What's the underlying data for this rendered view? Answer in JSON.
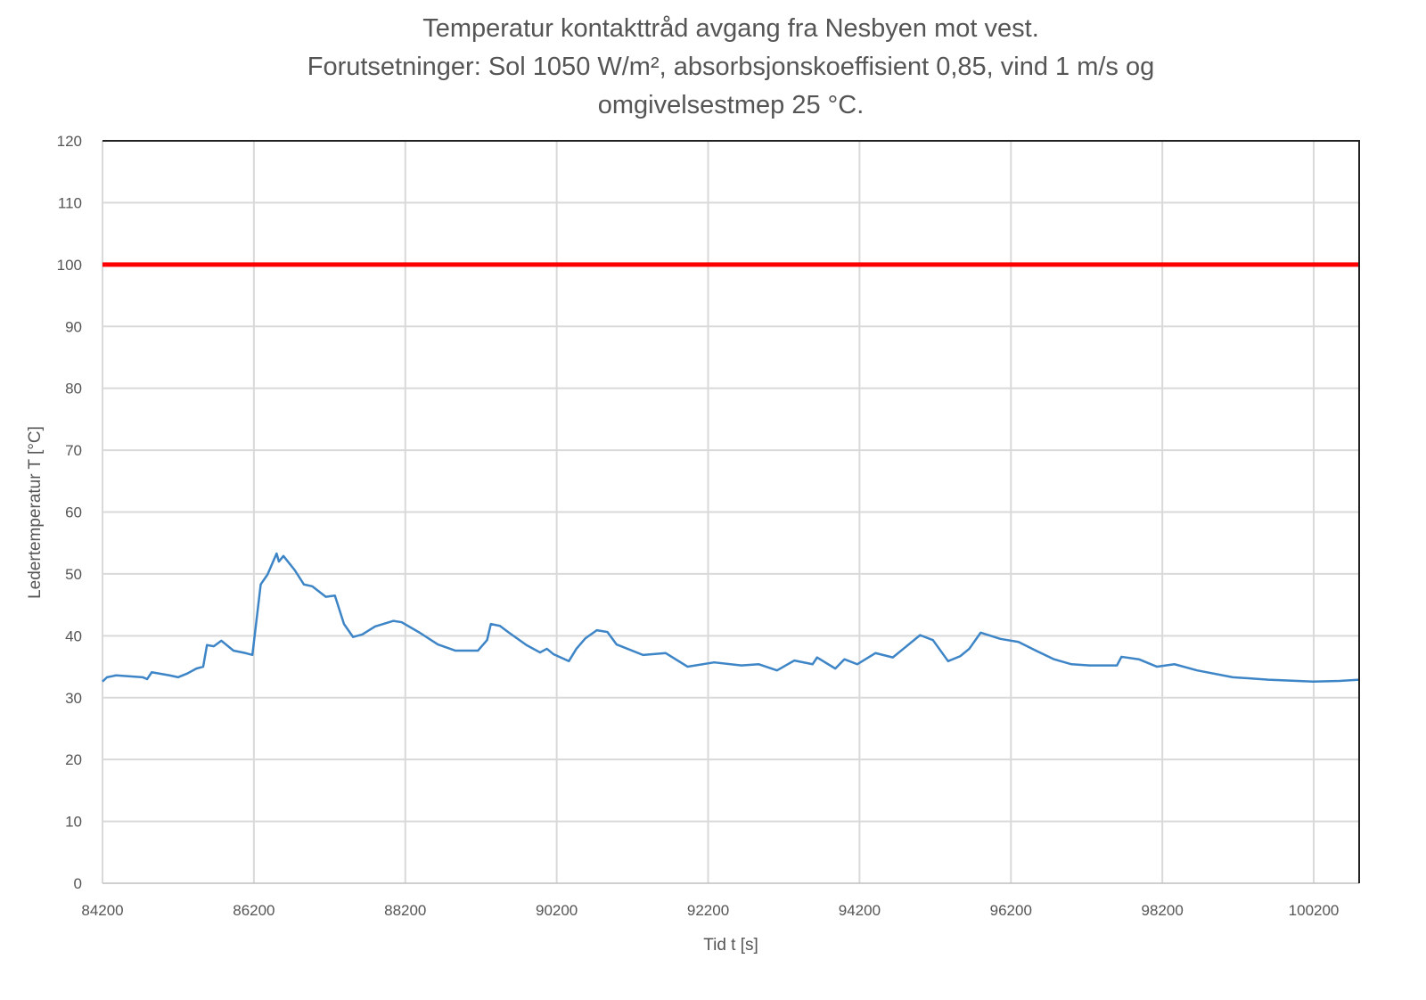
{
  "chart_data": {
    "type": "line",
    "title_lines": [
      "Temperatur kontakttråd avgang fra Nesbyen mot vest.",
      "Forutsetninger: Sol 1050 W/m², absorbsjonskoeffisient  0,85, vind 1 m/s og",
      "omgivelsestmep 25 °C."
    ],
    "xlabel": "Tid t [s]",
    "ylabel": "Ledertemperatur  T [°C]",
    "xlim": [
      84200,
      100800
    ],
    "ylim": [
      0,
      120
    ],
    "xticks": [
      "84200",
      "86200",
      "88200",
      "90200",
      "92200",
      "94200",
      "96200",
      "98200",
      "100200"
    ],
    "yticks": [
      "0",
      "10",
      "20",
      "30",
      "40",
      "50",
      "60",
      "70",
      "80",
      "90",
      "100",
      "110",
      "120"
    ],
    "grid": true,
    "colors": {
      "series": "#3d85c6",
      "limit": "#ff0000",
      "grid": "#d9d9d9"
    },
    "reference_line": {
      "y": 100
    },
    "series": [
      {
        "x": [
          84200,
          84260,
          84380,
          84730,
          84790,
          84850,
          85085,
          85200,
          85320,
          85440,
          85530,
          85580,
          85670,
          85770,
          85930,
          86090,
          86180,
          86290,
          86380,
          86500,
          86530,
          86590,
          86740,
          86860,
          86970,
          87150,
          87270,
          87390,
          87510,
          87630,
          87800,
          88040,
          88150,
          88390,
          88630,
          88860,
          89160,
          89280,
          89330,
          89450,
          89570,
          89800,
          89980,
          90070,
          90160,
          90360,
          90460,
          90580,
          90730,
          90870,
          90990,
          91340,
          91640,
          91930,
          92280,
          92640,
          92870,
          93110,
          93340,
          93580,
          93640,
          93880,
          94000,
          94170,
          94410,
          94640,
          95000,
          95170,
          95370,
          95530,
          95650,
          95800,
          96060,
          96300,
          96530,
          96770,
          97000,
          97240,
          97600,
          97660,
          97890,
          98130,
          98360,
          98660,
          99130,
          99600,
          100190,
          100540,
          100810
        ],
        "y": [
          32.6,
          33.3,
          33.6,
          33.3,
          33.0,
          34.1,
          33.6,
          33.3,
          33.9,
          34.7,
          35.0,
          38.5,
          38.3,
          39.2,
          37.6,
          37.2,
          36.9,
          48.3,
          49.9,
          53.3,
          52.0,
          52.9,
          50.6,
          48.3,
          48.0,
          46.3,
          46.5,
          41.9,
          39.8,
          40.2,
          41.5,
          42.4,
          42.2,
          40.5,
          38.6,
          37.6,
          37.6,
          39.3,
          41.9,
          41.6,
          40.5,
          38.5,
          37.3,
          37.9,
          37.0,
          35.9,
          37.9,
          39.6,
          40.9,
          40.6,
          38.6,
          36.9,
          37.2,
          35.0,
          35.7,
          35.2,
          35.4,
          34.4,
          36.0,
          35.4,
          36.5,
          34.7,
          36.2,
          35.4,
          37.2,
          36.5,
          40.1,
          39.3,
          35.9,
          36.7,
          37.9,
          40.5,
          39.5,
          39.0,
          37.6,
          36.2,
          35.4,
          35.2,
          35.2,
          36.6,
          36.2,
          35.0,
          35.4,
          34.4,
          33.3,
          32.9,
          32.6,
          32.7,
          32.9
        ]
      }
    ]
  }
}
